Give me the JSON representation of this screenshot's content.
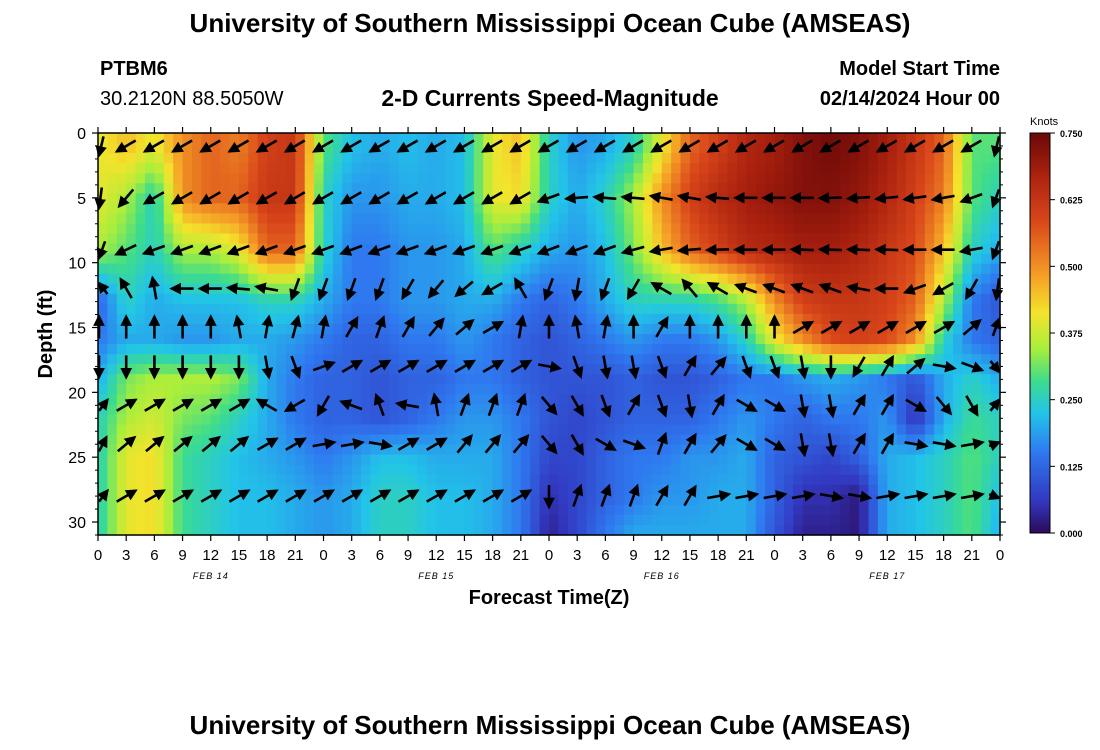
{
  "page": {
    "title": "University of Southern Mississippi Ocean Cube (AMSEAS)",
    "footer_title": "University of Southern Mississippi Ocean Cube (AMSEAS)",
    "station_id": "PTBM6",
    "station_coords": "30.2120N  88.5050W",
    "chart_title": "2-D Currents Speed-Magnitude",
    "model_start_label": "Model Start Time",
    "model_start_value": "02/14/2024 Hour 00"
  },
  "chart_data": {
    "type": "heatmap",
    "title": "2-D Currents Speed-Magnitude",
    "xlabel": "Forecast Time(Z)",
    "ylabel": "Depth (ft)",
    "x_tick_labels": [
      "0",
      "3",
      "6",
      "9",
      "12",
      "15",
      "18",
      "21",
      "0",
      "3",
      "6",
      "9",
      "12",
      "15",
      "18",
      "21",
      "0",
      "3",
      "6",
      "9",
      "12",
      "15",
      "18",
      "21",
      "0",
      "3",
      "6",
      "9",
      "12",
      "15",
      "18",
      "21",
      "0"
    ],
    "day_labels": [
      "FEB 14",
      "FEB 15",
      "FEB 16",
      "FEB 17"
    ],
    "xlim_hours": [
      0,
      96
    ],
    "y_ticks": [
      0,
      5,
      10,
      15,
      20,
      25,
      30
    ],
    "ylim_ft": [
      0,
      31
    ],
    "y_inverted": true,
    "colorbar": {
      "unit": "Knots",
      "range": [
        0,
        0.75
      ],
      "ticks": [
        "0.750",
        "0.625",
        "0.500",
        "0.375",
        "0.250",
        "0.125",
        "0.000"
      ]
    },
    "depths_ft": [
      1,
      5,
      9,
      13,
      16,
      19,
      22,
      25,
      28,
      31
    ],
    "times_h": [
      0,
      3,
      6,
      9,
      12,
      15,
      18,
      21,
      24,
      27,
      30,
      33,
      36,
      39,
      42,
      45,
      48,
      51,
      54,
      57,
      60,
      63,
      66,
      69,
      72,
      75,
      78,
      81,
      84,
      87,
      90,
      93,
      96
    ],
    "speed_knots": [
      [
        0.4,
        0.45,
        0.4,
        0.5,
        0.55,
        0.52,
        0.6,
        0.62,
        0.3,
        0.22,
        0.2,
        0.22,
        0.2,
        0.22,
        0.4,
        0.45,
        0.25,
        0.18,
        0.2,
        0.25,
        0.4,
        0.55,
        0.6,
        0.66,
        0.68,
        0.72,
        0.74,
        0.72,
        0.68,
        0.62,
        0.55,
        0.3,
        0.3
      ],
      [
        0.4,
        0.35,
        0.25,
        0.5,
        0.55,
        0.55,
        0.62,
        0.62,
        0.25,
        0.18,
        0.18,
        0.2,
        0.2,
        0.22,
        0.4,
        0.42,
        0.25,
        0.2,
        0.25,
        0.35,
        0.5,
        0.6,
        0.65,
        0.68,
        0.7,
        0.72,
        0.72,
        0.7,
        0.66,
        0.6,
        0.52,
        0.3,
        0.25
      ],
      [
        0.35,
        0.3,
        0.25,
        0.35,
        0.35,
        0.4,
        0.55,
        0.55,
        0.25,
        0.15,
        0.15,
        0.18,
        0.18,
        0.2,
        0.3,
        0.25,
        0.2,
        0.18,
        0.22,
        0.32,
        0.45,
        0.55,
        0.6,
        0.65,
        0.66,
        0.68,
        0.68,
        0.66,
        0.62,
        0.58,
        0.45,
        0.25,
        0.2
      ],
      [
        0.12,
        0.25,
        0.2,
        0.22,
        0.22,
        0.22,
        0.25,
        0.25,
        0.2,
        0.15,
        0.15,
        0.18,
        0.18,
        0.2,
        0.2,
        0.15,
        0.12,
        0.15,
        0.2,
        0.25,
        0.25,
        0.25,
        0.28,
        0.35,
        0.5,
        0.6,
        0.62,
        0.62,
        0.6,
        0.55,
        0.35,
        0.15,
        0.1
      ],
      [
        0.15,
        0.2,
        0.2,
        0.18,
        0.18,
        0.2,
        0.2,
        0.18,
        0.15,
        0.12,
        0.12,
        0.15,
        0.15,
        0.18,
        0.15,
        0.12,
        0.1,
        0.12,
        0.15,
        0.18,
        0.15,
        0.15,
        0.18,
        0.25,
        0.4,
        0.5,
        0.58,
        0.6,
        0.58,
        0.5,
        0.25,
        0.15,
        0.12
      ],
      [
        0.2,
        0.32,
        0.35,
        0.35,
        0.35,
        0.32,
        0.2,
        0.15,
        0.12,
        0.12,
        0.1,
        0.12,
        0.12,
        0.15,
        0.15,
        0.12,
        0.1,
        0.1,
        0.1,
        0.12,
        0.1,
        0.1,
        0.12,
        0.15,
        0.15,
        0.18,
        0.2,
        0.18,
        0.15,
        0.1,
        0.2,
        0.25,
        0.2
      ],
      [
        0.25,
        0.35,
        0.38,
        0.32,
        0.3,
        0.25,
        0.2,
        0.15,
        0.12,
        0.12,
        0.1,
        0.12,
        0.15,
        0.18,
        0.18,
        0.15,
        0.1,
        0.08,
        0.1,
        0.12,
        0.12,
        0.12,
        0.15,
        0.18,
        0.15,
        0.12,
        0.15,
        0.15,
        0.18,
        0.05,
        0.2,
        0.28,
        0.25
      ],
      [
        0.25,
        0.4,
        0.42,
        0.28,
        0.25,
        0.22,
        0.2,
        0.18,
        0.15,
        0.18,
        0.22,
        0.22,
        0.2,
        0.2,
        0.2,
        0.15,
        0.08,
        0.08,
        0.12,
        0.15,
        0.15,
        0.18,
        0.18,
        0.2,
        0.12,
        0.1,
        0.08,
        0.12,
        0.2,
        0.22,
        0.25,
        0.3,
        0.25
      ],
      [
        0.25,
        0.4,
        0.42,
        0.28,
        0.25,
        0.22,
        0.22,
        0.2,
        0.18,
        0.2,
        0.25,
        0.25,
        0.22,
        0.22,
        0.2,
        0.15,
        0.05,
        0.08,
        0.12,
        0.15,
        0.18,
        0.18,
        0.2,
        0.2,
        0.12,
        0.05,
        0.05,
        0.02,
        0.2,
        0.22,
        0.25,
        0.3,
        0.22
      ],
      [
        0.25,
        0.4,
        0.42,
        0.28,
        0.25,
        0.22,
        0.22,
        0.2,
        0.18,
        0.2,
        0.25,
        0.25,
        0.22,
        0.22,
        0.2,
        0.15,
        0.03,
        0.08,
        0.15,
        0.2,
        0.2,
        0.2,
        0.2,
        0.2,
        0.1,
        0.03,
        0.03,
        0.02,
        0.2,
        0.22,
        0.25,
        0.3,
        0.2
      ]
    ],
    "arrow_depths_ft": [
      1,
      5,
      9,
      12,
      15,
      18,
      21,
      24,
      28
    ],
    "direction_deg": [
      [
        210,
        240,
        240,
        240,
        240,
        240,
        240,
        240,
        240,
        240,
        240,
        240,
        240,
        240,
        240,
        240,
        240,
        240,
        240,
        240,
        240,
        240,
        240,
        240,
        240,
        240,
        240,
        240,
        240,
        240,
        240,
        240,
        210
      ],
      [
        200,
        220,
        240,
        240,
        240,
        240,
        240,
        240,
        240,
        240,
        240,
        240,
        240,
        240,
        240,
        240,
        250,
        265,
        275,
        275,
        280,
        280,
        275,
        270,
        270,
        270,
        268,
        266,
        264,
        262,
        260,
        250,
        220
      ],
      [
        220,
        245,
        250,
        250,
        250,
        250,
        250,
        250,
        250,
        250,
        250,
        250,
        250,
        250,
        250,
        250,
        250,
        250,
        250,
        255,
        260,
        265,
        268,
        270,
        270,
        272,
        272,
        272,
        272,
        270,
        270,
        260,
        220
      ],
      [
        300,
        330,
        350,
        270,
        270,
        275,
        280,
        200,
        200,
        200,
        200,
        210,
        220,
        230,
        240,
        330,
        200,
        190,
        200,
        210,
        300,
        320,
        300,
        290,
        290,
        290,
        290,
        280,
        270,
        250,
        240,
        210,
        200
      ],
      [
        0,
        0,
        0,
        0,
        0,
        350,
        10,
        15,
        10,
        30,
        20,
        30,
        40,
        50,
        60,
        10,
        0,
        350,
        10,
        0,
        30,
        0,
        0,
        0,
        0,
        60,
        60,
        60,
        60,
        60,
        60,
        50,
        40
      ],
      [
        180,
        180,
        180,
        180,
        180,
        180,
        170,
        160,
        70,
        60,
        60,
        60,
        60,
        60,
        60,
        60,
        100,
        160,
        170,
        170,
        160,
        30,
        40,
        160,
        160,
        170,
        180,
        210,
        30,
        50,
        100,
        110,
        120
      ],
      [
        60,
        60,
        60,
        60,
        60,
        60,
        300,
        240,
        210,
        290,
        340,
        280,
        350,
        20,
        20,
        20,
        140,
        150,
        160,
        30,
        160,
        170,
        30,
        120,
        120,
        170,
        170,
        30,
        30,
        120,
        140,
        150,
        60
      ],
      [
        50,
        50,
        50,
        50,
        50,
        50,
        60,
        60,
        80,
        80,
        100,
        60,
        60,
        40,
        40,
        40,
        140,
        150,
        120,
        110,
        20,
        30,
        40,
        120,
        120,
        170,
        170,
        30,
        30,
        100,
        100,
        80,
        80
      ],
      [
        60,
        60,
        60,
        60,
        60,
        60,
        60,
        60,
        60,
        60,
        60,
        60,
        60,
        60,
        60,
        60,
        180,
        20,
        20,
        20,
        30,
        30,
        80,
        80,
        80,
        80,
        100,
        100,
        80,
        80,
        80,
        80,
        100
      ]
    ]
  }
}
